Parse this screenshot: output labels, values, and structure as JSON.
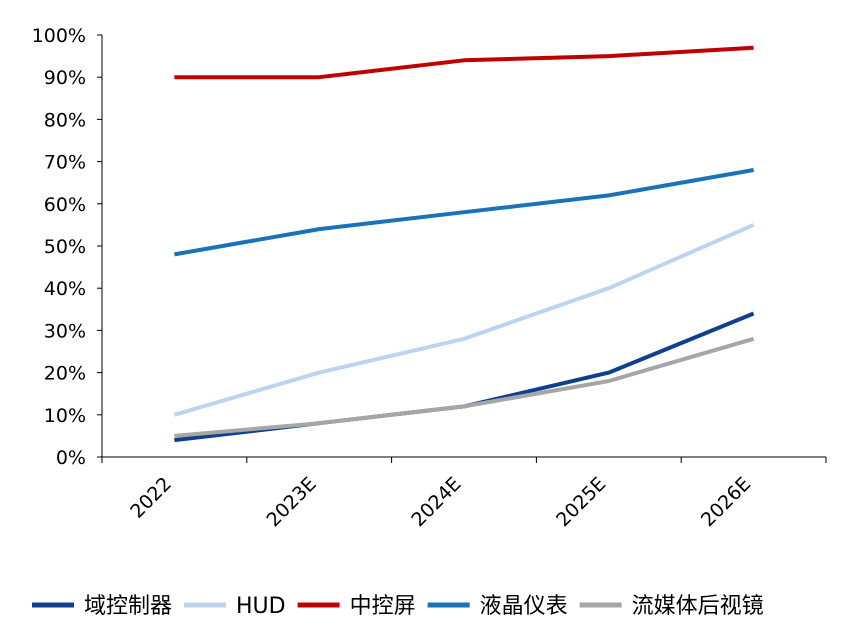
{
  "chart_data": {
    "type": "line",
    "categories": [
      "2022",
      "2023E",
      "2024E",
      "2025E",
      "2026E"
    ],
    "ylim": [
      0,
      100
    ],
    "yticks": [
      0,
      10,
      20,
      30,
      40,
      50,
      60,
      70,
      80,
      90,
      100
    ],
    "ytick_labels": [
      "0%",
      "10%",
      "20%",
      "30%",
      "40%",
      "50%",
      "60%",
      "70%",
      "80%",
      "90%",
      "100%"
    ],
    "grid": false,
    "legend_position": "bottom",
    "series": [
      {
        "name": "域控制器",
        "values": [
          4,
          8,
          12,
          20,
          34
        ],
        "color": "#0f3f8f"
      },
      {
        "name": "HUD",
        "values": [
          10,
          20,
          28,
          40,
          55
        ],
        "color": "#bcd4f0"
      },
      {
        "name": "中控屏",
        "values": [
          90,
          90,
          94,
          95,
          97
        ],
        "color": "#c00000"
      },
      {
        "name": "液晶仪表",
        "values": [
          48,
          54,
          58,
          62,
          68
        ],
        "color": "#1a72b8"
      },
      {
        "name": "流媒体后视镜",
        "values": [
          5,
          8,
          12,
          18,
          28
        ],
        "color": "#a6a6a6"
      }
    ]
  }
}
